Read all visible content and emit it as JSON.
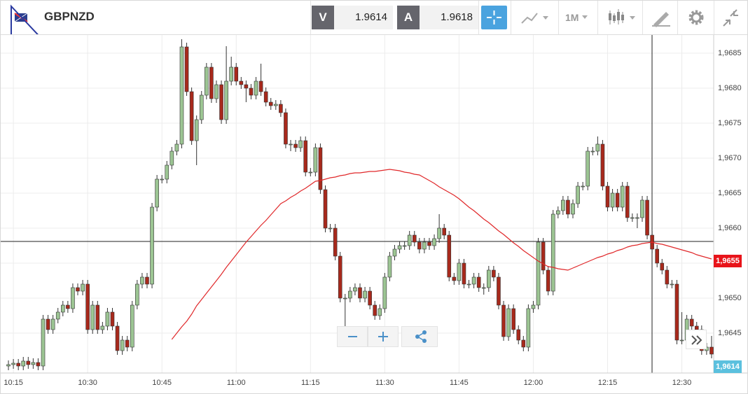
{
  "toolbar": {
    "symbol": "GBPNZD",
    "bid_label": "V",
    "bid": "1.9614",
    "ask_label": "A",
    "ask": "1.9618",
    "interval": "1M"
  },
  "chart_data": {
    "type": "candlestick",
    "categories": [
      null,
      "10:15",
      null,
      null,
      null,
      null,
      null,
      null,
      null,
      null,
      null,
      null,
      null,
      null,
      null,
      null,
      "10:30",
      null,
      null,
      null,
      null,
      null,
      null,
      null,
      null,
      null,
      null,
      null,
      null,
      null,
      null,
      "10:45",
      null,
      null,
      null,
      null,
      null,
      null,
      null,
      null,
      null,
      null,
      null,
      null,
      null,
      null,
      "11:00",
      null,
      null,
      null,
      null,
      null,
      null,
      null,
      null,
      null,
      null,
      null,
      null,
      null,
      null,
      "11:15",
      null,
      null,
      null,
      null,
      null,
      null,
      null,
      null,
      null,
      null,
      null,
      null,
      null,
      null,
      "11:30",
      null,
      null,
      null,
      null,
      null,
      null,
      null,
      null,
      null,
      null,
      null,
      null,
      null,
      null,
      "11:45",
      null,
      null,
      null,
      null,
      null,
      null,
      null,
      null,
      null,
      null,
      null,
      null,
      null,
      null,
      "12:00",
      null,
      null,
      null,
      null,
      null,
      null,
      null,
      null,
      null,
      null,
      null,
      null,
      null,
      null,
      "12:15",
      null,
      null,
      null,
      null,
      null,
      null,
      null,
      null,
      null,
      null,
      null,
      null,
      null,
      null,
      "12:30",
      null,
      null,
      null,
      null,
      null,
      null
    ],
    "open": [
      1.96403,
      1.96405,
      1.96407,
      1.96403,
      1.9641,
      1.96405,
      1.96408,
      1.96403,
      1.9647,
      1.96455,
      1.9647,
      1.9648,
      1.9649,
      1.96485,
      1.96515,
      1.9651,
      1.9652,
      1.96455,
      1.9649,
      1.96455,
      1.9646,
      1.9648,
      1.9646,
      1.96425,
      1.9644,
      1.9643,
      1.9649,
      1.9652,
      1.9653,
      1.9652,
      1.9663,
      1.9667,
      1.9667,
      1.9669,
      1.9671,
      1.9672,
      1.96859,
      1.96795,
      1.96725,
      1.96755,
      1.9679,
      1.9683,
      1.96785,
      1.96805,
      1.96755,
      1.9681,
      1.9683,
      1.9681,
      1.96805,
      1.968,
      1.9679,
      1.9681,
      1.96795,
      1.9678,
      1.96775,
      1.96777,
      1.96765,
      1.9672,
      1.9672,
      1.96715,
      1.96725,
      1.9668,
      1.9668,
      1.96715,
      1.96655,
      1.966,
      1.966,
      1.9656,
      1.965,
      1.965,
      1.9651,
      1.96515,
      1.965,
      1.9651,
      1.9649,
      1.96475,
      1.96485,
      1.9653,
      1.9656,
      1.9657,
      1.96575,
      1.96575,
      1.9659,
      1.9658,
      1.9657,
      1.9658,
      1.96575,
      1.96585,
      1.966,
      1.9659,
      1.9653,
      1.96525,
      1.9655,
      1.9652,
      1.9652,
      1.9653,
      1.96515,
      1.96515,
      1.9654,
      1.9653,
      1.9649,
      1.96445,
      1.96485,
      1.96455,
      1.9644,
      1.9643,
      1.96485,
      1.9649,
      1.9658,
      1.9654,
      1.9651,
      1.9662,
      1.96625,
      1.9664,
      1.9662,
      1.96635,
      1.9666,
      1.9666,
      1.9671,
      1.9671,
      1.9672,
      1.9666,
      1.9663,
      1.9665,
      1.9663,
      1.9666,
      1.96615,
      1.96615,
      1.96615,
      1.9664,
      1.9659,
      1.9657,
      1.9655,
      1.9654,
      1.9652,
      1.9652,
      1.9644,
      1.9644,
      1.9647,
      1.9646,
      1.96455,
      1.96425,
      1.9643
    ],
    "high": [
      1.96411,
      1.96413,
      1.96413,
      1.96416,
      1.96416,
      1.96414,
      1.96414,
      1.96476,
      1.96476,
      1.96476,
      1.96486,
      1.96496,
      1.96496,
      1.96521,
      1.96521,
      1.96526,
      1.96526,
      1.96496,
      1.96496,
      1.96466,
      1.96486,
      1.96486,
      1.96466,
      1.96446,
      1.96446,
      1.96496,
      1.96526,
      1.96536,
      1.96536,
      1.96636,
      1.96676,
      1.96676,
      1.96696,
      1.96716,
      1.96726,
      1.9687,
      1.96865,
      1.96801,
      1.96761,
      1.96796,
      1.96836,
      1.96836,
      1.96811,
      1.96811,
      1.9686,
      1.96845,
      1.96836,
      1.96816,
      1.96811,
      1.96806,
      1.96816,
      1.96835,
      1.96801,
      1.96786,
      1.96783,
      1.96783,
      1.96771,
      1.96726,
      1.96726,
      1.96731,
      1.96731,
      1.96686,
      1.96721,
      1.96721,
      1.96661,
      1.96606,
      1.96606,
      1.96566,
      1.96506,
      1.96516,
      1.96521,
      1.96521,
      1.96516,
      1.96516,
      1.96496,
      1.96491,
      1.96536,
      1.96566,
      1.96576,
      1.96581,
      1.96581,
      1.96596,
      1.96596,
      1.96586,
      1.96586,
      1.96586,
      1.96591,
      1.9662,
      1.96606,
      1.96596,
      1.96536,
      1.96556,
      1.96556,
      1.96526,
      1.96536,
      1.96536,
      1.96521,
      1.96546,
      1.96546,
      1.96536,
      1.96496,
      1.96491,
      1.96491,
      1.96461,
      1.96446,
      1.96491,
      1.96496,
      1.96586,
      1.96586,
      1.96546,
      1.96626,
      1.96631,
      1.96646,
      1.96646,
      1.96641,
      1.96666,
      1.96666,
      1.96716,
      1.96716,
      1.96731,
      1.96726,
      1.96666,
      1.96656,
      1.96656,
      1.96666,
      1.96666,
      1.96621,
      1.96621,
      1.96646,
      1.96646,
      1.96596,
      1.96576,
      1.96556,
      1.96546,
      1.96526,
      1.96526,
      1.9648,
      1.96476,
      1.96476,
      1.96466,
      1.96461,
      1.96436,
      1.96446
    ],
    "low": [
      1.96397,
      1.96399,
      1.96397,
      1.96397,
      1.96399,
      1.96399,
      1.96397,
      1.96397,
      1.96449,
      1.96449,
      1.96464,
      1.96474,
      1.96479,
      1.96479,
      1.96504,
      1.96504,
      1.96449,
      1.96449,
      1.96449,
      1.96449,
      1.96454,
      1.96454,
      1.96419,
      1.96419,
      1.96424,
      1.96424,
      1.96484,
      1.96514,
      1.96514,
      1.96514,
      1.96624,
      1.96664,
      1.96664,
      1.96684,
      1.96704,
      1.96714,
      1.96789,
      1.96719,
      1.9669,
      1.96749,
      1.96784,
      1.96779,
      1.96779,
      1.96749,
      1.96749,
      1.96804,
      1.96804,
      1.96799,
      1.9678,
      1.96784,
      1.96784,
      1.96789,
      1.96774,
      1.96769,
      1.96769,
      1.96759,
      1.96714,
      1.9671,
      1.96709,
      1.96709,
      1.96674,
      1.96674,
      1.96674,
      1.96649,
      1.96594,
      1.96594,
      1.96554,
      1.96494,
      1.9646,
      1.96494,
      1.96504,
      1.96494,
      1.96494,
      1.96484,
      1.96469,
      1.96469,
      1.96479,
      1.96524,
      1.96554,
      1.96564,
      1.96569,
      1.96569,
      1.96574,
      1.96564,
      1.96564,
      1.96569,
      1.96569,
      1.96579,
      1.96584,
      1.96524,
      1.96519,
      1.96519,
      1.96514,
      1.96514,
      1.96514,
      1.96509,
      1.96505,
      1.96509,
      1.96524,
      1.96484,
      1.96439,
      1.96439,
      1.96449,
      1.96434,
      1.96424,
      1.96424,
      1.96479,
      1.96484,
      1.96534,
      1.96504,
      1.96504,
      1.96614,
      1.96619,
      1.96614,
      1.96614,
      1.96629,
      1.96654,
      1.96654,
      1.96704,
      1.96704,
      1.96654,
      1.96624,
      1.96624,
      1.96624,
      1.96624,
      1.96609,
      1.96609,
      1.966,
      1.96609,
      1.96584,
      1.96564,
      1.96544,
      1.96534,
      1.96514,
      1.96514,
      1.96434,
      1.96434,
      1.96434,
      1.96454,
      1.96449,
      1.96419,
      1.96419,
      1.96414
    ],
    "close": [
      1.96405,
      1.96407,
      1.96403,
      1.9641,
      1.96405,
      1.96408,
      1.96403,
      1.9647,
      1.96455,
      1.9647,
      1.9648,
      1.9649,
      1.96485,
      1.96515,
      1.9651,
      1.9652,
      1.96455,
      1.9649,
      1.96455,
      1.9646,
      1.9648,
      1.9646,
      1.96425,
      1.9644,
      1.9643,
      1.9649,
      1.9652,
      1.9653,
      1.9652,
      1.9663,
      1.9667,
      1.9667,
      1.9669,
      1.9671,
      1.9672,
      1.96859,
      1.96795,
      1.96725,
      1.96755,
      1.9679,
      1.9683,
      1.96785,
      1.96805,
      1.96755,
      1.9681,
      1.9683,
      1.9681,
      1.96805,
      1.968,
      1.9679,
      1.9681,
      1.96795,
      1.9678,
      1.96775,
      1.96777,
      1.96765,
      1.9672,
      1.9672,
      1.96715,
      1.96725,
      1.9668,
      1.9668,
      1.96715,
      1.96655,
      1.966,
      1.966,
      1.9656,
      1.965,
      1.965,
      1.9651,
      1.96515,
      1.965,
      1.9651,
      1.9649,
      1.96475,
      1.96485,
      1.9653,
      1.9656,
      1.9657,
      1.96575,
      1.96575,
      1.9659,
      1.9658,
      1.9657,
      1.9658,
      1.96575,
      1.96585,
      1.966,
      1.9659,
      1.9653,
      1.96525,
      1.9655,
      1.9652,
      1.9652,
      1.9653,
      1.96515,
      1.96515,
      1.9654,
      1.9653,
      1.9649,
      1.96445,
      1.96485,
      1.96455,
      1.9644,
      1.9643,
      1.96485,
      1.9649,
      1.9658,
      1.9654,
      1.9651,
      1.9662,
      1.96625,
      1.9664,
      1.9662,
      1.96635,
      1.9666,
      1.9666,
      1.9671,
      1.9671,
      1.9672,
      1.9666,
      1.9663,
      1.9665,
      1.9663,
      1.9666,
      1.96615,
      1.96615,
      1.96615,
      1.9664,
      1.9659,
      1.9657,
      1.9655,
      1.9654,
      1.9652,
      1.9652,
      1.9644,
      1.9644,
      1.9647,
      1.9646,
      1.96455,
      1.96425,
      1.9643,
      1.9642
    ],
    "up_color": "#9cc593",
    "down_color": "#a8291c",
    "moving_average": {
      "color": "#e0282a",
      "values": [
        null,
        null,
        null,
        null,
        null,
        null,
        null,
        null,
        null,
        null,
        null,
        null,
        null,
        null,
        null,
        null,
        null,
        null,
        null,
        null,
        null,
        null,
        null,
        null,
        null,
        null,
        null,
        null,
        null,
        null,
        null,
        null,
        null,
        1.96441,
        1.9645,
        1.96459,
        1.96467,
        1.96477,
        1.96489,
        1.96498,
        1.96507,
        1.96516,
        1.96525,
        1.96534,
        1.96544,
        1.96553,
        1.96562,
        1.96571,
        1.9658,
        1.96588,
        1.96596,
        1.96604,
        1.96611,
        1.96619,
        1.96627,
        1.96635,
        1.96639,
        1.96644,
        1.96648,
        1.96653,
        1.96657,
        1.96662,
        1.96667,
        1.96668,
        1.9667,
        1.96672,
        1.96673,
        1.96675,
        1.96676,
        1.96678,
        1.96679,
        1.96679,
        1.9668,
        1.96681,
        1.96681,
        1.96682,
        1.96683,
        1.96684,
        1.96683,
        1.96682,
        1.9668,
        1.96679,
        1.96677,
        1.96676,
        1.96672,
        1.96668,
        1.96664,
        1.96659,
        1.96655,
        1.96651,
        1.96647,
        1.96642,
        1.96636,
        1.9663,
        1.96625,
        1.96619,
        1.96613,
        1.96608,
        1.96602,
        1.96596,
        1.96591,
        1.96585,
        1.96579,
        1.96574,
        1.96568,
        1.96563,
        1.96558,
        1.96553,
        1.96549,
        1.96545,
        1.96544,
        1.96542,
        1.96541,
        1.9654,
        1.96543,
        1.96546,
        1.96549,
        1.96552,
        1.96555,
        1.96558,
        1.9656,
        1.96563,
        1.96565,
        1.96568,
        1.9657,
        1.96573,
        1.96575,
        1.96576,
        1.96578,
        1.96579,
        1.9658,
        1.96578,
        1.96577,
        1.96575,
        1.96573,
        1.96571,
        1.96569,
        1.96567,
        1.96565,
        1.96562,
        1.9656,
        1.96558,
        1.96556
      ]
    },
    "ylim": [
      1.96393,
      1.96877
    ],
    "yticks": [
      {
        "value": 1.9645,
        "label": "1,9645"
      },
      {
        "value": 1.965,
        "label": "1,9650"
      },
      {
        "value": 1.9655,
        "label": "1,9655"
      },
      {
        "value": 1.966,
        "label": "1,9660"
      },
      {
        "value": 1.9665,
        "label": "1,9665"
      },
      {
        "value": 1.967,
        "label": "1,9670"
      },
      {
        "value": 1.9675,
        "label": "1,9675"
      },
      {
        "value": 1.968,
        "label": "1,9680"
      },
      {
        "value": 1.9685,
        "label": "1,9685"
      }
    ],
    "grid": true,
    "price_tags": [
      {
        "label": "1,9655",
        "color": "#e8141a"
      },
      {
        "label": "1,9614",
        "color": "#5bc0de"
      }
    ]
  }
}
